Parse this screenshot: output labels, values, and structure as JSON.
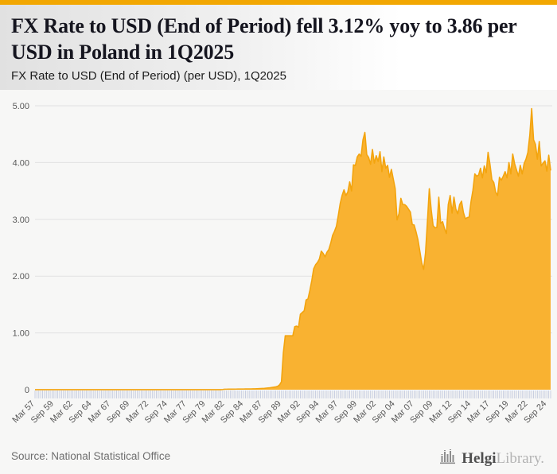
{
  "header": {
    "accent_color": "#f2a702",
    "title": "FX Rate to USD (End of Period) fell 3.12% yoy to 3.86 per USD in Poland in 1Q2025",
    "subtitle": "FX Rate to USD (End of Period) (per USD), 1Q2025"
  },
  "footer": {
    "source": "Source: National Statistical Office",
    "logo": {
      "icon": "skyline-bars-icon",
      "text_primary": "Helgi",
      "text_secondary": "Library."
    }
  },
  "chart_data": {
    "type": "area",
    "title": "FX Rate to USD (End of Period) (per USD), 1Q2025",
    "unit": "per USD",
    "frequency": "quarterly",
    "x_first": "Mar 57",
    "x_last": "Mar 25",
    "x_tick_every": 10,
    "x_tick_labels": [
      "Mar 57",
      "Sep 59",
      "Mar 62",
      "Sep 64",
      "Mar 67",
      "Sep 69",
      "Mar 72",
      "Sep 74",
      "Mar 77",
      "Sep 79",
      "Mar 82",
      "Sep 84",
      "Mar 87",
      "Sep 89",
      "Mar 92",
      "Sep 94",
      "Mar 97",
      "Sep 99",
      "Mar 02",
      "Sep 04",
      "Mar 07",
      "Sep 09",
      "Mar 12",
      "Sep 14",
      "Mar 17",
      "Sep 19",
      "Mar 22",
      "Sep 24"
    ],
    "y_ticks": [
      0,
      1,
      2,
      3,
      4,
      5
    ],
    "y_tick_labels": [
      "0",
      "1.00",
      "2.00",
      "3.00",
      "4.00",
      "5.00"
    ],
    "ylim": [
      0,
      5
    ],
    "grid": "horizontal",
    "legend": "none",
    "latest_value": 3.86,
    "yoy_change_pct": -3.12,
    "colors": {
      "area_fill": "#f9b231",
      "area_stroke": "#f3a40e",
      "grid": "#e2e2e2",
      "axis_text": "#595959",
      "quarter_ticks": "#c3cade"
    },
    "values": [
      0.0004,
      0.0004,
      0.0004,
      0.0004,
      0.0004,
      0.0004,
      0.0004,
      0.0004,
      0.0004,
      0.0004,
      0.0004,
      0.0004,
      0.0004,
      0.0004,
      0.0004,
      0.0004,
      0.0004,
      0.0004,
      0.0004,
      0.0004,
      0.0004,
      0.0004,
      0.0004,
      0.0004,
      0.0004,
      0.0004,
      0.0004,
      0.0004,
      0.0004,
      0.0004,
      0.0004,
      0.0004,
      0.0004,
      0.0004,
      0.0004,
      0.0004,
      0.0004,
      0.0004,
      0.0004,
      0.0004,
      0.0004,
      0.0004,
      0.0004,
      0.0004,
      0.0004,
      0.0004,
      0.0004,
      0.0004,
      0.0004,
      0.0004,
      0.0004,
      0.0004,
      0.0004,
      0.0004,
      0.0004,
      0.0004,
      0.0004,
      0.0004,
      0.0004,
      0.0004,
      0.0004,
      0.0004,
      0.0004,
      0.0004,
      0.0004,
      0.0004,
      0.0004,
      0.0004,
      0.0004,
      0.0004,
      0.0004,
      0.0004,
      0.0004,
      0.0004,
      0.0004,
      0.0004,
      0.0004,
      0.0004,
      0.0004,
      0.0004,
      0.0004,
      0.0004,
      0.0004,
      0.0004,
      0.0004,
      0.0004,
      0.0004,
      0.0004,
      0.0004,
      0.0004,
      0.0004,
      0.0004,
      0.0004,
      0.0004,
      0.0004,
      0.0004,
      0.0005,
      0.0008,
      0.0015,
      0.0034,
      0.0085,
      0.0088,
      0.0092,
      0.0096,
      0.0098,
      0.01,
      0.0104,
      0.011,
      0.0115,
      0.0118,
      0.0122,
      0.0126,
      0.013,
      0.0135,
      0.014,
      0.0147,
      0.0155,
      0.0165,
      0.018,
      0.0198,
      0.0215,
      0.024,
      0.028,
      0.0316,
      0.035,
      0.04,
      0.045,
      0.0502,
      0.06,
      0.085,
      0.14,
      0.65,
      0.95,
      0.95,
      0.95,
      0.95,
      0.95,
      1.11,
      1.12,
      1.1,
      1.33,
      1.36,
      1.39,
      1.58,
      1.6,
      1.75,
      1.92,
      2.13,
      2.2,
      2.24,
      2.3,
      2.44,
      2.4,
      2.34,
      2.42,
      2.47,
      2.58,
      2.72,
      2.79,
      2.88,
      3.07,
      3.28,
      3.42,
      3.52,
      3.42,
      3.48,
      3.66,
      3.5,
      3.96,
      3.95,
      4.1,
      4.15,
      4.11,
      4.4,
      4.53,
      4.14,
      4.09,
      3.97,
      4.23,
      3.99,
      4.12,
      4.02,
      4.19,
      3.84,
      4.1,
      3.9,
      3.95,
      3.74,
      3.88,
      3.71,
      3.54,
      2.99,
      3.1,
      3.37,
      3.26,
      3.26,
      3.23,
      3.18,
      3.13,
      2.91,
      2.9,
      2.78,
      2.64,
      2.44,
      2.23,
      2.12,
      2.41,
      2.96,
      3.54,
      3.17,
      2.89,
      2.85,
      2.86,
      3.39,
      2.93,
      2.96,
      2.84,
      2.75,
      3.26,
      3.42,
      3.11,
      3.39,
      3.18,
      3.1,
      3.26,
      3.32,
      3.12,
      3.01,
      3.03,
      3.04,
      3.31,
      3.51,
      3.8,
      3.76,
      3.78,
      3.9,
      3.73,
      3.94,
      3.82,
      4.18,
      3.97,
      3.7,
      3.65,
      3.48,
      3.42,
      3.74,
      3.69,
      3.76,
      3.84,
      3.73,
      4.0,
      3.8,
      4.15,
      3.98,
      3.87,
      3.76,
      3.95,
      3.8,
      3.98,
      4.06,
      4.18,
      4.48,
      4.95,
      4.4,
      4.32,
      4.06,
      4.37,
      3.94,
      3.99,
      4.03,
      3.85,
      4.13,
      3.86
    ]
  }
}
